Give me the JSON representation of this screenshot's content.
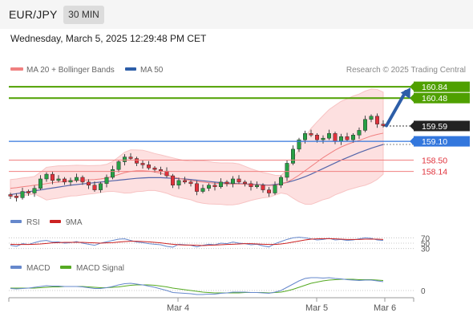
{
  "header": {
    "pair": "EUR/JPY",
    "timeframe": "30 MIN",
    "datetime": "Wednesday, March 5, 2025 12:29:48 PM CET"
  },
  "legend": {
    "ma20": "MA 20 + Bollinger Bands",
    "ma50": "MA 50",
    "credit": "Research © 2025 Trading Central",
    "rsi": "RSI",
    "rsi_ma": "9MA",
    "macd": "MACD",
    "macd_signal": "MACD Signal"
  },
  "colors": {
    "candle_down": "#e0313b",
    "candle_up": "#27a045",
    "ma20": "#f08080",
    "ma50": "#5566aa",
    "bollinger_fill": "#fde0e0",
    "resistance": "#4fa000",
    "pivot": "#3377dd",
    "support": "#e0313b",
    "current": "#222222",
    "arrow": "#2d5ea8",
    "rsi": "#6688cc",
    "rsi_ma": "#cc2222",
    "macd": "#6688cc",
    "macd_signal": "#55aa22"
  },
  "chart_data": {
    "type": "candlestick",
    "xlabels": [
      "Mar 4",
      "Mar 5",
      "Mar 6"
    ],
    "price_levels": [
      {
        "value": "160.84",
        "role": "resistance"
      },
      {
        "value": "160.48",
        "role": "resistance"
      },
      {
        "value": "159.59",
        "role": "current"
      },
      {
        "value": "159.10",
        "role": "pivot"
      },
      {
        "value": "158.50",
        "role": "support"
      },
      {
        "value": "158.14",
        "role": "support"
      }
    ],
    "ylim": [
      156.9,
      161.1
    ],
    "closes": [
      157.35,
      157.3,
      157.5,
      157.45,
      157.6,
      157.9,
      158.05,
      157.85,
      157.9,
      157.8,
      157.85,
      157.95,
      157.8,
      157.7,
      157.55,
      157.75,
      157.95,
      158.2,
      158.45,
      158.6,
      158.55,
      158.4,
      158.35,
      158.25,
      158.2,
      158.15,
      158.0,
      157.7,
      157.85,
      157.8,
      157.75,
      157.5,
      157.6,
      157.7,
      157.65,
      157.8,
      157.75,
      157.9,
      157.8,
      157.75,
      157.65,
      157.7,
      157.55,
      157.45,
      157.7,
      157.95,
      158.4,
      158.85,
      159.15,
      159.35,
      159.3,
      159.15,
      159.2,
      159.35,
      159.1,
      159.25,
      159.15,
      159.3,
      159.45,
      159.8,
      159.9,
      159.65,
      159.6
    ],
    "ma20": [
      157.6,
      157.62,
      157.65,
      157.67,
      157.7,
      157.72,
      157.75,
      157.78,
      157.8,
      157.82,
      157.84,
      157.85,
      157.86,
      157.87,
      157.88,
      157.9,
      157.93,
      157.98,
      158.04,
      158.1,
      158.14,
      158.16,
      158.16,
      158.15,
      158.12,
      158.08,
      158.03,
      157.97,
      157.92,
      157.88,
      157.85,
      157.82,
      157.8,
      157.78,
      157.76,
      157.75,
      157.74,
      157.74,
      157.74,
      157.73,
      157.72,
      157.71,
      157.7,
      157.69,
      157.7,
      157.73,
      157.8,
      157.9,
      158.02,
      158.16,
      158.3,
      158.44,
      158.58,
      158.7,
      158.82,
      158.92,
      159.0,
      159.07,
      159.13,
      159.2,
      159.27,
      159.32,
      159.36
    ],
    "ma50": [
      157.4,
      157.43,
      157.46,
      157.49,
      157.52,
      157.55,
      157.58,
      157.61,
      157.64,
      157.67,
      157.7,
      157.72,
      157.74,
      157.76,
      157.78,
      157.8,
      157.82,
      157.84,
      157.86,
      157.88,
      157.9,
      157.92,
      157.93,
      157.94,
      157.94,
      157.94,
      157.93,
      157.92,
      157.91,
      157.9,
      157.88,
      157.86,
      157.84,
      157.82,
      157.8,
      157.78,
      157.77,
      157.76,
      157.75,
      157.74,
      157.73,
      157.72,
      157.71,
      157.7,
      157.72,
      157.75,
      157.79,
      157.84,
      157.9,
      157.97,
      158.05,
      158.14,
      158.23,
      158.32,
      158.41,
      158.5,
      158.58,
      158.66,
      158.74,
      158.81,
      158.88,
      158.94,
      159.0
    ],
    "rsi_ticks": [
      "70",
      "50",
      "30"
    ],
    "rsi": [
      42,
      38,
      48,
      45,
      52,
      58,
      60,
      54,
      55,
      50,
      52,
      56,
      50,
      46,
      42,
      50,
      55,
      60,
      65,
      66,
      60,
      54,
      52,
      48,
      46,
      44,
      38,
      35,
      46,
      44,
      42,
      36,
      42,
      46,
      44,
      50,
      48,
      54,
      50,
      48,
      44,
      46,
      40,
      36,
      48,
      56,
      64,
      70,
      72,
      70,
      66,
      62,
      64,
      68,
      62,
      64,
      60,
      62,
      66,
      70,
      68,
      62,
      60
    ],
    "rsi_ma": [
      46,
      45,
      45,
      45,
      46,
      47,
      49,
      51,
      52,
      53,
      53,
      53,
      53,
      52,
      51,
      50,
      51,
      52,
      54,
      56,
      57,
      57,
      56,
      55,
      53,
      51,
      48,
      46,
      44,
      43,
      43,
      42,
      41,
      42,
      43,
      44,
      45,
      46,
      47,
      48,
      48,
      47,
      46,
      45,
      45,
      47,
      50,
      54,
      58,
      62,
      65,
      66,
      67,
      67,
      66,
      65,
      64,
      64,
      64,
      65,
      65,
      65,
      64
    ],
    "macd_ticks": [
      "0"
    ],
    "macd": [
      0.05,
      0.04,
      0.05,
      0.06,
      0.08,
      0.1,
      0.12,
      0.11,
      0.11,
      0.1,
      0.1,
      0.1,
      0.09,
      0.07,
      0.05,
      0.05,
      0.07,
      0.1,
      0.14,
      0.17,
      0.18,
      0.16,
      0.14,
      0.11,
      0.08,
      0.04,
      0.0,
      -0.05,
      -0.06,
      -0.07,
      -0.08,
      -0.1,
      -0.1,
      -0.09,
      -0.09,
      -0.07,
      -0.06,
      -0.04,
      -0.04,
      -0.04,
      -0.05,
      -0.05,
      -0.06,
      -0.07,
      -0.04,
      0.0,
      0.08,
      0.16,
      0.24,
      0.3,
      0.32,
      0.32,
      0.31,
      0.32,
      0.3,
      0.29,
      0.27,
      0.26,
      0.25,
      0.26,
      0.26,
      0.24,
      0.22
    ],
    "macd_signal": [
      0.06,
      0.06,
      0.06,
      0.06,
      0.06,
      0.07,
      0.08,
      0.09,
      0.09,
      0.1,
      0.1,
      0.1,
      0.1,
      0.09,
      0.08,
      0.07,
      0.07,
      0.08,
      0.09,
      0.11,
      0.13,
      0.14,
      0.14,
      0.14,
      0.13,
      0.11,
      0.09,
      0.06,
      0.04,
      0.02,
      0.0,
      -0.02,
      -0.04,
      -0.05,
      -0.06,
      -0.06,
      -0.06,
      -0.06,
      -0.06,
      -0.05,
      -0.05,
      -0.05,
      -0.05,
      -0.06,
      -0.05,
      -0.04,
      -0.01,
      0.03,
      0.08,
      0.13,
      0.18,
      0.21,
      0.24,
      0.26,
      0.27,
      0.28,
      0.28,
      0.28,
      0.27,
      0.27,
      0.27,
      0.26,
      0.25
    ]
  }
}
